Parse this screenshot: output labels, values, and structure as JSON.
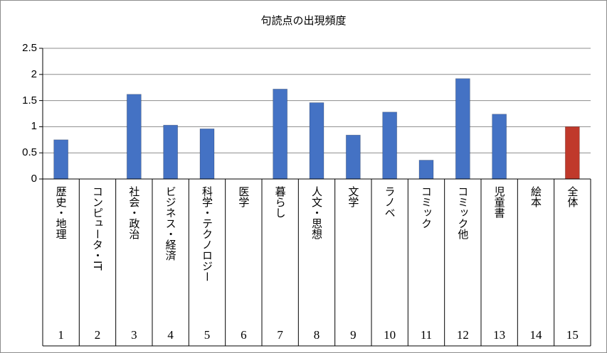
{
  "chart_data": {
    "type": "bar",
    "title": "句読点の出現頻度",
    "categories": [
      "歴史・地理",
      "コンピュータ・IT",
      "社会・政治",
      "ビジネス・経済",
      "科学・テクノロジー",
      "医学",
      "暮らし",
      "人文・思想",
      "文学",
      "ラノベ",
      "コミック",
      "コミック他",
      "児童書",
      "絵本",
      "全体"
    ],
    "indices": [
      "1",
      "2",
      "3",
      "4",
      "5",
      "6",
      "7",
      "8",
      "9",
      "10",
      "11",
      "12",
      "13",
      "14",
      "15"
    ],
    "values": [
      0.75,
      0,
      1.62,
      1.03,
      0.96,
      0,
      1.72,
      1.46,
      0.84,
      1.28,
      0.36,
      1.92,
      1.24,
      0,
      1.0
    ],
    "bar_colors": [
      "#4472c4",
      "#4472c4",
      "#4472c4",
      "#4472c4",
      "#4472c4",
      "#4472c4",
      "#4472c4",
      "#4472c4",
      "#4472c4",
      "#4472c4",
      "#4472c4",
      "#4472c4",
      "#4472c4",
      "#4472c4",
      "#c0392b"
    ],
    "ylim": [
      0,
      2.5
    ],
    "yticks": [
      "0",
      "0.5",
      "1",
      "1.5",
      "2",
      "2.5"
    ],
    "ytick_values": [
      0,
      0.5,
      1,
      1.5,
      2,
      2.5
    ],
    "grid": true,
    "legend": "none"
  }
}
